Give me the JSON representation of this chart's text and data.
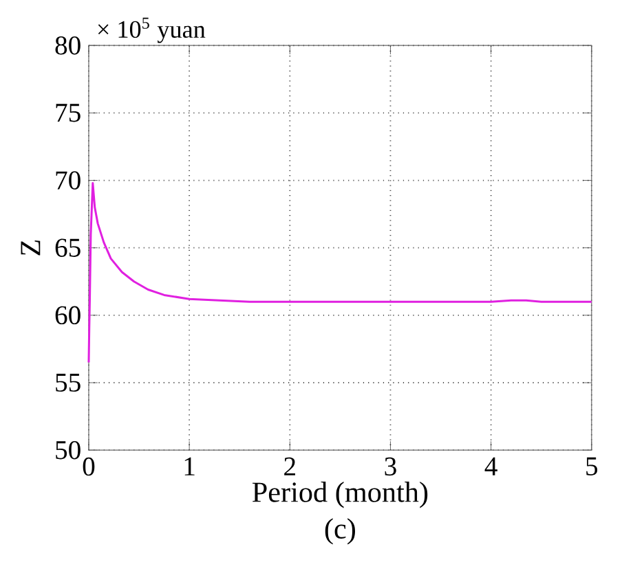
{
  "chart_data": {
    "type": "line",
    "xlabel": "Period (month)",
    "ylabel": "Z",
    "annotations": [
      "× 10$^{5}$ yuan",
      "(c)"
    ],
    "x": [
      0,
      0.005,
      0.01,
      0.02,
      0.04,
      0.06,
      0.09,
      0.15,
      0.22,
      0.33,
      0.45,
      0.59,
      0.75,
      1.0,
      1.3,
      1.6,
      2.0,
      2.5,
      3.0,
      3.5,
      4.0,
      4.2,
      4.35,
      4.5,
      5.0
    ],
    "series": [
      {
        "color": "#e020e0",
        "values": [
          56.5,
          59,
          61,
          66,
          69.8,
          68,
          66.8,
          65.4,
          64.2,
          63.2,
          62.5,
          61.9,
          61.5,
          61.2,
          61.1,
          61.0,
          61.0,
          61.0,
          61.0,
          61.0,
          61.0,
          61.1,
          61.1,
          61.0,
          61.0
        ]
      }
    ],
    "xlim": [
      0,
      5
    ],
    "ylim": [
      50,
      80
    ],
    "xticks": [
      0,
      1,
      2,
      3,
      4,
      5
    ],
    "yticks": [
      50,
      55,
      60,
      65,
      70,
      75,
      80
    ],
    "grid": true,
    "marker": "none",
    "line_style": "solid"
  }
}
